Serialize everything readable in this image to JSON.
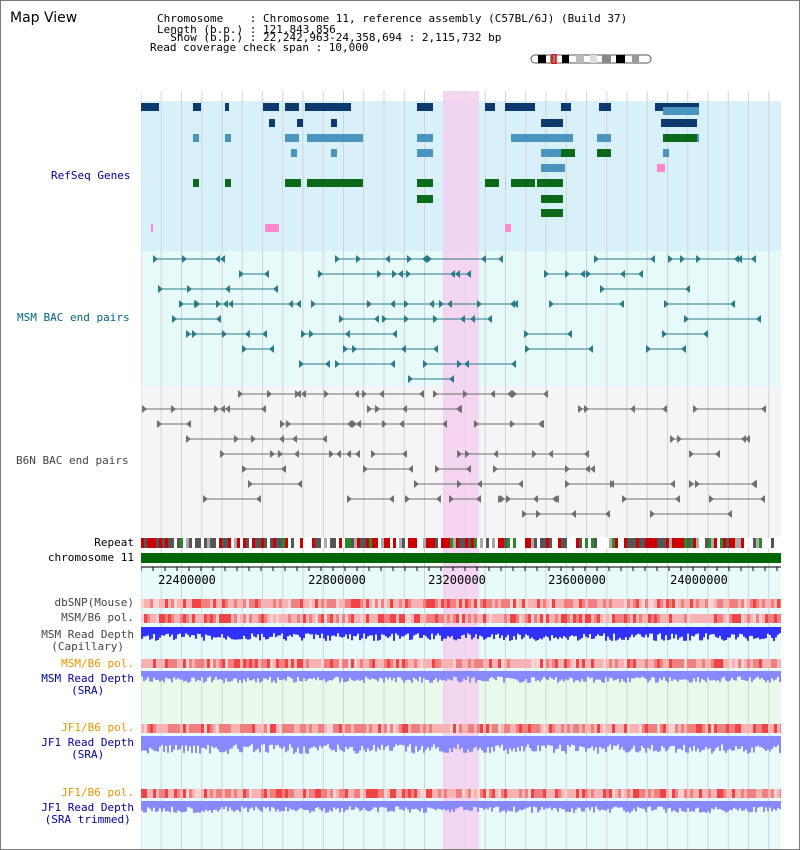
{
  "view_title": "Map View",
  "header": {
    "chromosome_line": "Chromosome    : Chromosome 11, reference assembly (C57BL/6J) (Build 37)",
    "length_line": "Length (b.p.) : 121,843,856",
    "show_line": "  Show (b.p.) : 22,242,963-24,358,694 : 2,115,732 bp",
    "span_line": "Read coverage check span : 10,000"
  },
  "tracks": {
    "refseq": "RefSeq Genes",
    "msm_bac": "MSM BAC end pairs",
    "b6n_bac": "B6N BAC end pairs",
    "repeat": "Repeat",
    "chromosome": "chromosome 11",
    "dbsnp": "dbSNP(Mouse)",
    "msm_pol_1": "MSM/B6 pol.",
    "msm_depth_cap": "MSM Read Depth\n(Capillary)",
    "msm_pol_2": "MSM/B6 pol.",
    "msm_depth_sra": "MSM Read Depth\n(SRA)",
    "jf1_pol_1": "JF1/B6 pol.",
    "jf1_depth_sra": "JF1 Read Depth\n(SRA)",
    "jf1_pol_2": "JF1/B6 pol.",
    "jf1_depth_trim": "JF1 Read Depth\n(SRA trimmed)"
  },
  "axis": {
    "ticks": [
      "22400000",
      "22800000",
      "23200000",
      "23600000",
      "24000000"
    ]
  },
  "colors": {
    "refseq_bg": "#d8f0fa",
    "msm_bg": "#e6fafa",
    "b6n_bg": "#f5f5f8",
    "highlight": "#f5d0f0",
    "gene_dark": "#0d3a6e",
    "gene_mid": "#4a94c0",
    "gene_green": "#0a6a1a",
    "msm_pair": "#2a7a8a",
    "b6n_pair": "#707070",
    "chrom_green": "#006600",
    "depth_blue": "#3030ff",
    "depth_light": "#8888ff",
    "label_blue": "#000099",
    "label_teal": "#006680",
    "label_orange": "#e69500"
  }
}
